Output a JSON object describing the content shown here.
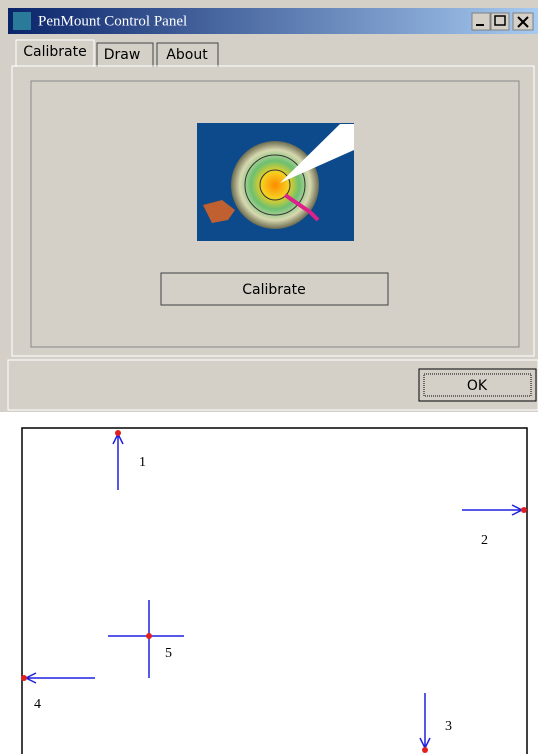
{
  "window": {
    "title": "PenMount Control Panel"
  },
  "tabs": [
    "Calibrate",
    "Draw",
    "About"
  ],
  "panel": {
    "button": "Calibrate"
  },
  "footer": {
    "button": "OK"
  },
  "diagram": {
    "points": [
      "1",
      "2",
      "3",
      "4",
      "5"
    ]
  }
}
